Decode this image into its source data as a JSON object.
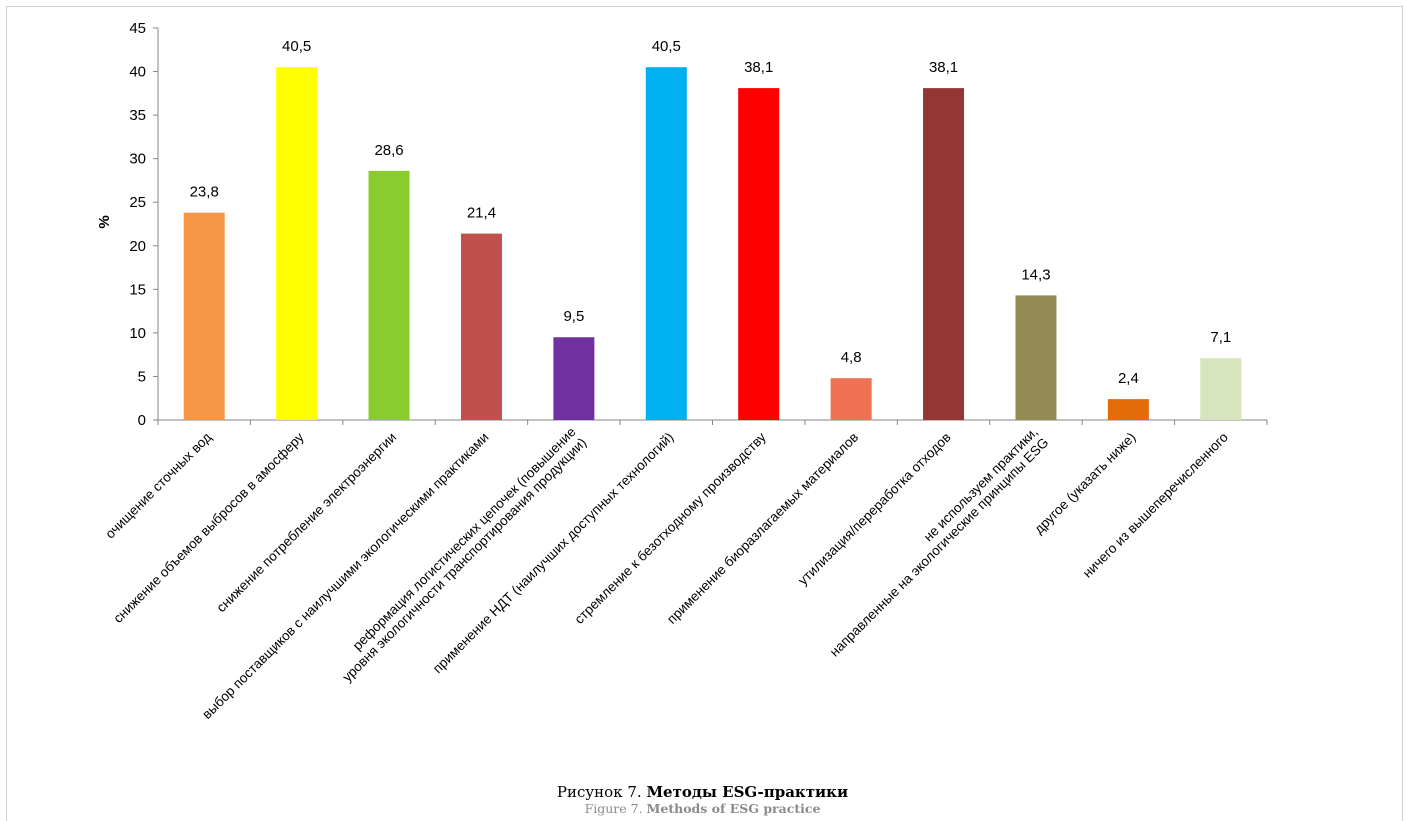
{
  "chart_data": {
    "type": "bar",
    "ylabel": "%",
    "xlabel": "",
    "ylim": [
      0,
      45
    ],
    "yticks": [
      0,
      5,
      10,
      15,
      20,
      25,
      30,
      35,
      40,
      45
    ],
    "grid": false,
    "legend": "none",
    "categories": [
      [
        "очищение сточных вод"
      ],
      [
        "снижение объемов выбросов в амосферу"
      ],
      [
        "снижение потребление электроэнергии"
      ],
      [
        "выбор поставщиков с наилучшими экологическими практиками"
      ],
      [
        "реформация логистических цепочек (повышение",
        "уровня экологичности транспортирования продукции)"
      ],
      [
        "применение НДТ (наилучших доступных технологий)"
      ],
      [
        "стремление к безотходному производству"
      ],
      [
        "применение биоразлагаемых материалов"
      ],
      [
        "утилизация/переработка отходов"
      ],
      [
        "не используем практики,",
        "направленные на экологические принципы ESG"
      ],
      [
        "другое (указать ниже)"
      ],
      [
        "ничего из вышеперечисленного"
      ]
    ],
    "values": [
      23.8,
      40.5,
      28.6,
      21.4,
      9.5,
      40.5,
      38.1,
      4.8,
      38.1,
      14.3,
      2.4,
      7.1
    ],
    "value_labels": [
      "23,8",
      "40,5",
      "28,6",
      "21,4",
      "9,5",
      "40,5",
      "38,1",
      "4,8",
      "38,1",
      "14,3",
      "2,4",
      "7,1"
    ],
    "colors": [
      "#F79646",
      "#FFFF00",
      "#8ACC2E",
      "#C0504D",
      "#7030A0",
      "#00B0F0",
      "#FF0000",
      "#ED7152",
      "#943634",
      "#948A54",
      "#E36C09",
      "#D7E4BD"
    ]
  },
  "caption": {
    "prefix": "Рисунок 7. ",
    "title": "Методы ESG-практики",
    "en_prefix": "Figure 7. ",
    "en_title": "Methods of ESG practice"
  }
}
